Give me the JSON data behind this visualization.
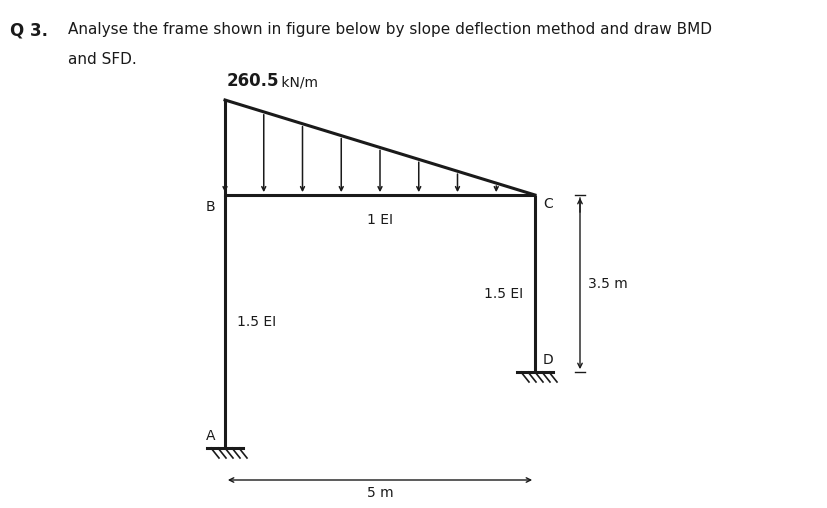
{
  "title_q": "Q 3.",
  "title_text": "Analyse the frame shown in figure below by slope deflection method and draw BMD",
  "title_text2": "and SFD.",
  "load_label_bold": "260.5",
  "load_unit": " kN/m",
  "label_1EI": "1 EI",
  "label_15EI_left": "1.5 EI",
  "label_15EI_right": "1.5 EI",
  "label_A": "A",
  "label_B": "B",
  "label_C": "C",
  "label_D": "D",
  "dim_5m": "5 m",
  "dim_35m": "3.5 m",
  "bg_color": "#ffffff",
  "frame_color": "#1a1a1a",
  "frame_lw": 2.2
}
